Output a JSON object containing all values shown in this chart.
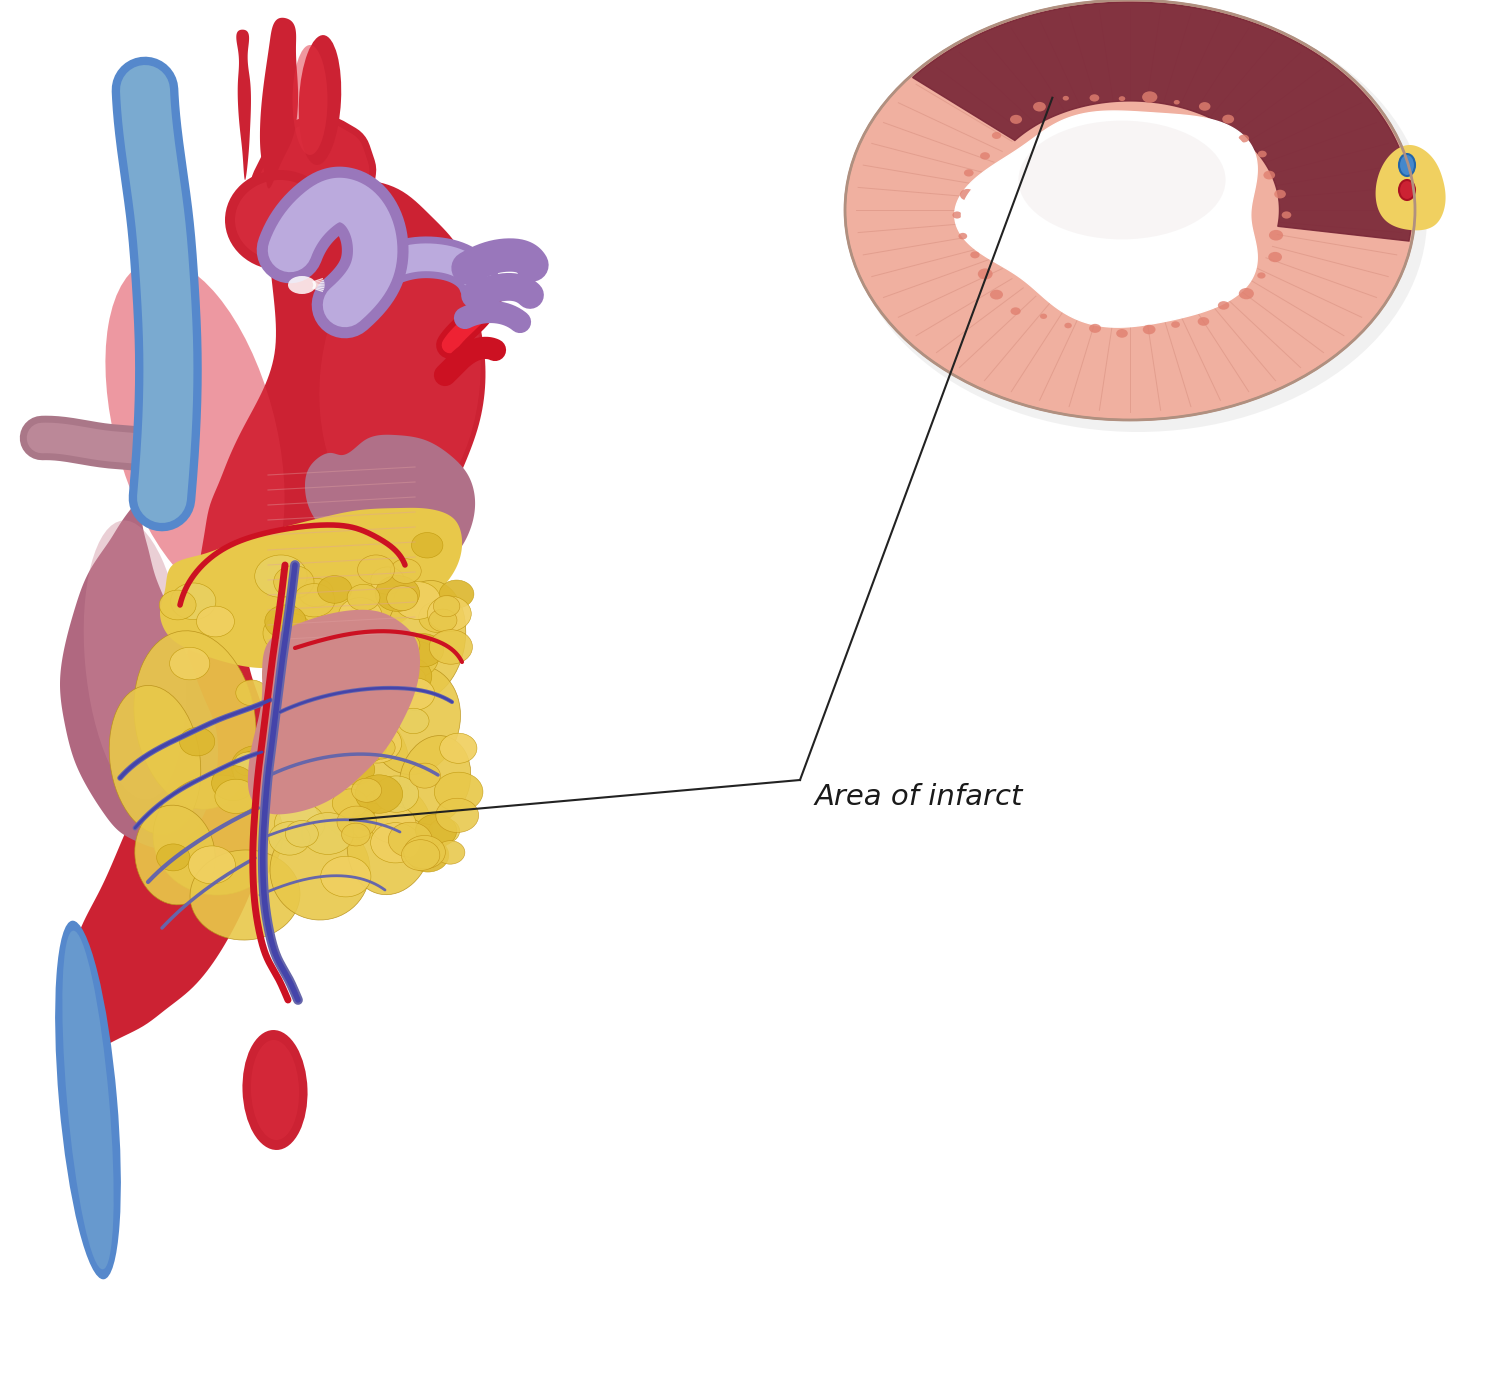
{
  "background_color": "#ffffff",
  "annotation_text": "Area of infarct",
  "annotation_fontsize": 21,
  "annotation_color": "#1a1a1a",
  "figsize": [
    14.95,
    13.75
  ],
  "dpi": 100,
  "heart_red": "#cc2233",
  "heart_red2": "#c01828",
  "heart_red_light": "#e04455",
  "heart_red_dark": "#8a0f1c",
  "right_atrium_color": "#b06880",
  "right_atrium_light": "#c888a0",
  "left_atrium_color": "#aa6080",
  "pulm_artery_color": "#9977bb",
  "pulm_artery_light": "#bbaadd",
  "svc_color": "#5588cc",
  "svc_light": "#7aaad0",
  "ivc_color": "#5588cc",
  "fat_yellow": "#e8c84a",
  "fat_yellow2": "#ddb830",
  "fat_yellow_light": "#f0d870",
  "fat_yellow_dark": "#b89018",
  "infarct_pale": "#d08888",
  "infarct_stripe": "#c07070",
  "vein_blue": "#6666aa",
  "vein_blue2": "#5555cc",
  "vein_blue_light": "#8888bb",
  "artery_red": "#cc1122",
  "artery_red2": "#ee2233",
  "cs_outer_color": "#f0a898",
  "cs_inner_color": "#e08070",
  "cs_muscle_color": "#f0b0a0",
  "cs_muscle_light": "#fad0c4",
  "cs_infarct": "#7a2838",
  "cs_fat": "#f0d060",
  "cs_lumen": "#ffffff"
}
